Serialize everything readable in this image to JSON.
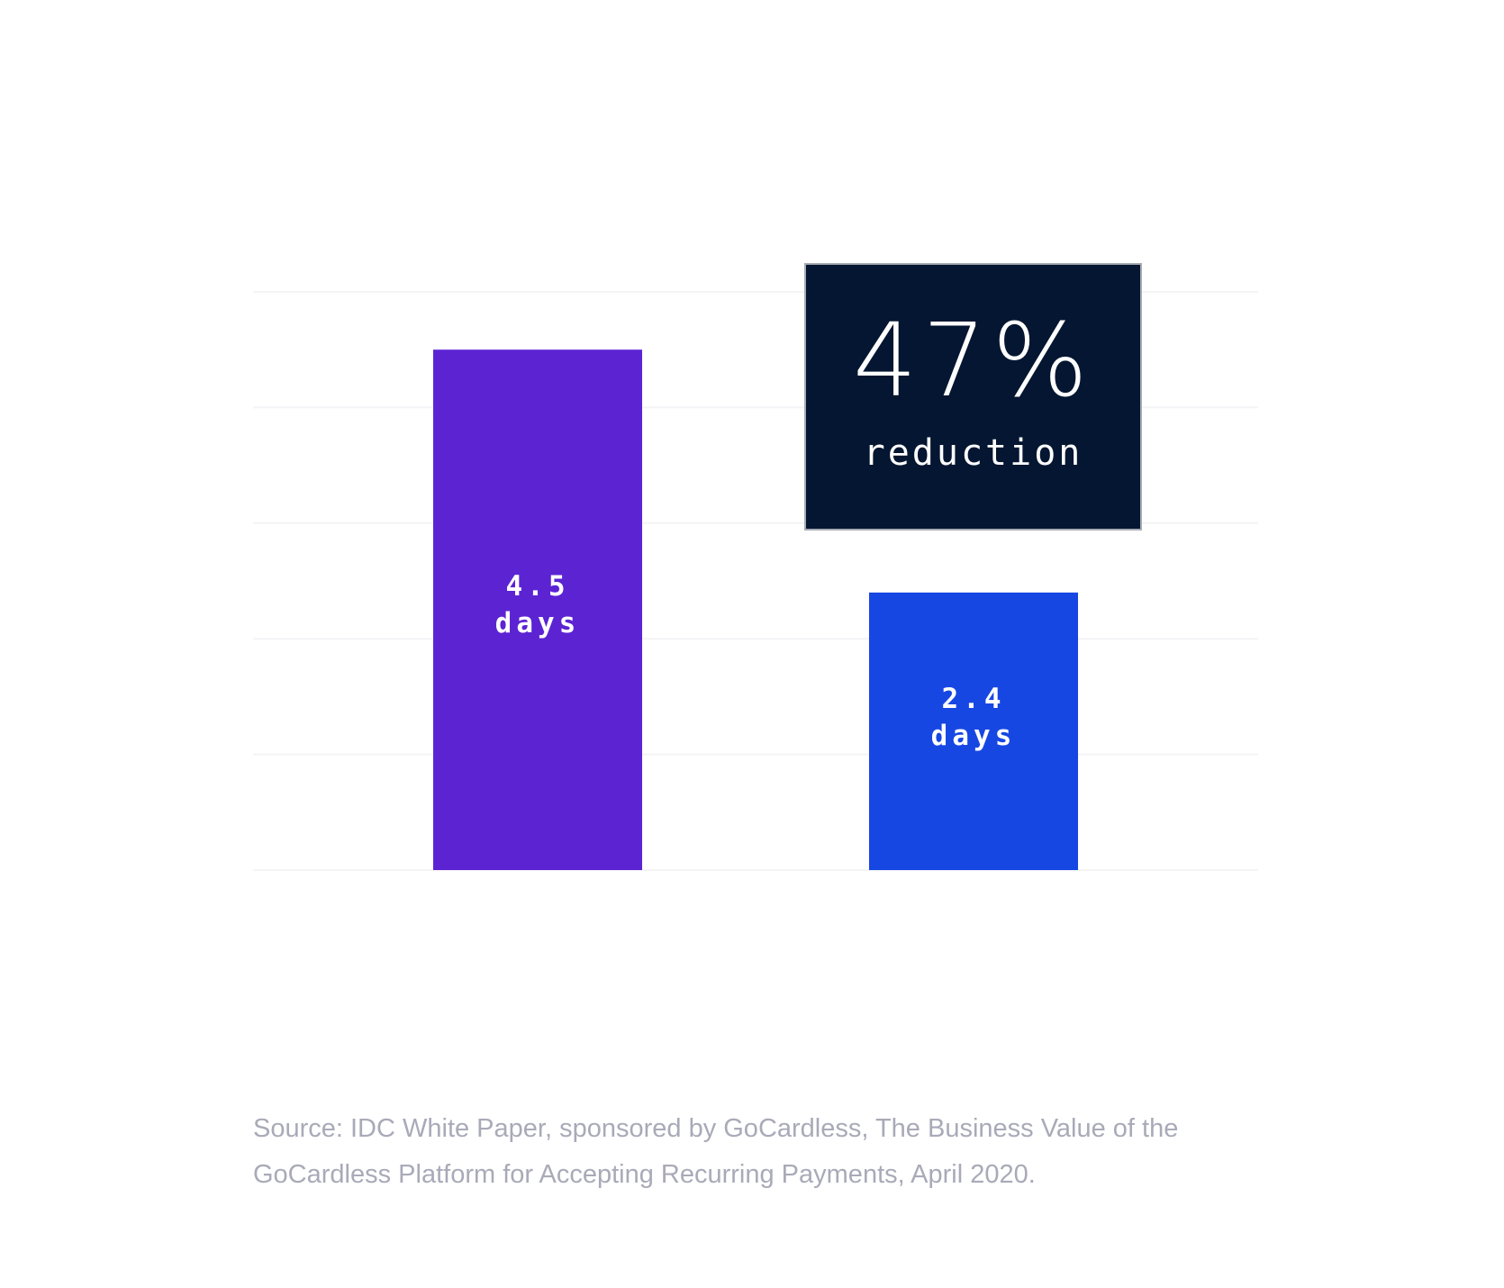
{
  "chart_data": {
    "type": "bar",
    "categories": [
      null,
      null
    ],
    "series": [
      {
        "values": [
          4.5,
          2.4
        ],
        "colors": [
          "#5c23d3",
          "#1747e3"
        ],
        "value_labels": [
          "4.5 days",
          "2.4 days"
        ]
      }
    ],
    "ylim": [
      0,
      5
    ],
    "yticks": [
      0,
      1,
      2,
      3,
      4,
      5
    ],
    "grid": true,
    "annotation": {
      "headline": "47%",
      "text": "reduction"
    },
    "source": "Source: IDC White Paper, sponsored by GoCardless, The Business Value of the GoCardless Platform for Accepting Recurring Payments, April 2020."
  }
}
